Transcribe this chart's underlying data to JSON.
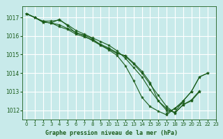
{
  "title": "Graphe pression niveau de la mer (hPa)",
  "bg_color": "#c8eaea",
  "plot_bg_color": "#c8eaea",
  "grid_color": "#ffffff",
  "line_color": "#1a5c1a",
  "marker_color": "#1a5c1a",
  "xlim": [
    -0.5,
    23
  ],
  "ylim": [
    1011.5,
    1017.6
  ],
  "yticks": [
    1012,
    1013,
    1014,
    1015,
    1016,
    1017
  ],
  "xticks": [
    0,
    1,
    2,
    3,
    4,
    5,
    6,
    7,
    8,
    9,
    10,
    11,
    12,
    13,
    14,
    15,
    16,
    17,
    18,
    19,
    20,
    21,
    22,
    23
  ],
  "series": [
    [
      1017.2,
      1017.0,
      1016.8,
      1016.8,
      1016.85,
      1016.6,
      1016.3,
      1016.1,
      1015.9,
      1015.7,
      1015.5,
      1015.2,
      1014.8,
      1014.3,
      1013.8,
      1013.1,
      1012.5,
      1012.0,
      1011.9,
      1012.5,
      1013.0,
      1013.8,
      1014.0,
      null
    ],
    [
      1017.2,
      1017.0,
      1016.75,
      1016.7,
      1016.5,
      1016.35,
      1016.1,
      1015.95,
      1015.8,
      1015.55,
      1015.35,
      1015.1,
      1014.9,
      1014.5,
      1014.0,
      1013.4,
      1012.8,
      1012.2,
      1011.85,
      1012.3,
      1012.5,
      1013.0,
      null,
      null
    ],
    [
      1017.2,
      1017.0,
      1016.75,
      1016.7,
      1016.9,
      1016.55,
      1016.15,
      1016.05,
      1015.85,
      1015.5,
      1015.3,
      1015.05,
      1014.95,
      1014.55,
      1014.1,
      1013.5,
      1012.5,
      1012.1,
      1011.85,
      1012.3,
      1012.55,
      1013.05,
      null,
      null
    ],
    [
      1017.2,
      1017.0,
      1016.75,
      1016.7,
      1016.6,
      1016.4,
      1016.2,
      1016.0,
      1015.75,
      1015.5,
      1015.25,
      1014.95,
      1014.4,
      1013.6,
      1012.7,
      1012.2,
      1011.95,
      1011.75,
      1012.1,
      1012.4,
      null,
      null,
      null,
      null
    ],
    [
      null,
      null,
      null,
      null,
      null,
      null,
      null,
      null,
      null,
      null,
      null,
      null,
      null,
      null,
      null,
      null,
      null,
      1011.85,
      1012.1,
      1012.5,
      1013.0,
      1013.8,
      1014.0,
      null
    ]
  ]
}
